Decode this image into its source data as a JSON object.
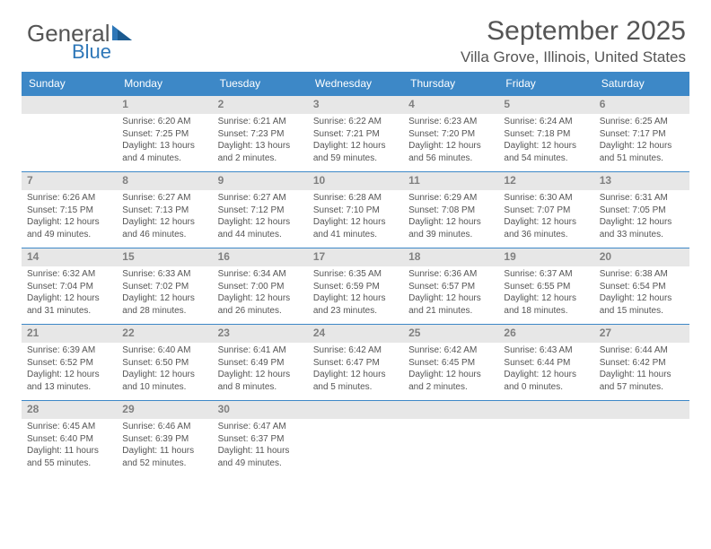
{
  "logo": {
    "text_main": "General",
    "text_blue": "Blue",
    "tri_color": "#2e77b8"
  },
  "title": "September 2025",
  "subtitle": "Villa Grove, Illinois, United States",
  "colors": {
    "header_bg": "#3d88c7",
    "header_text": "#ffffff",
    "daynum_bg": "#e7e7e7",
    "daynum_text": "#808080",
    "body_text": "#555555",
    "rule": "#3d88c7",
    "page_bg": "#ffffff"
  },
  "day_headers": [
    "Sunday",
    "Monday",
    "Tuesday",
    "Wednesday",
    "Thursday",
    "Friday",
    "Saturday"
  ],
  "weeks": [
    {
      "nums": [
        "",
        "1",
        "2",
        "3",
        "4",
        "5",
        "6"
      ],
      "details": [
        {
          "sunrise": "",
          "sunset": "",
          "daylight": ""
        },
        {
          "sunrise": "Sunrise: 6:20 AM",
          "sunset": "Sunset: 7:25 PM",
          "daylight": "Daylight: 13 hours and 4 minutes."
        },
        {
          "sunrise": "Sunrise: 6:21 AM",
          "sunset": "Sunset: 7:23 PM",
          "daylight": "Daylight: 13 hours and 2 minutes."
        },
        {
          "sunrise": "Sunrise: 6:22 AM",
          "sunset": "Sunset: 7:21 PM",
          "daylight": "Daylight: 12 hours and 59 minutes."
        },
        {
          "sunrise": "Sunrise: 6:23 AM",
          "sunset": "Sunset: 7:20 PM",
          "daylight": "Daylight: 12 hours and 56 minutes."
        },
        {
          "sunrise": "Sunrise: 6:24 AM",
          "sunset": "Sunset: 7:18 PM",
          "daylight": "Daylight: 12 hours and 54 minutes."
        },
        {
          "sunrise": "Sunrise: 6:25 AM",
          "sunset": "Sunset: 7:17 PM",
          "daylight": "Daylight: 12 hours and 51 minutes."
        }
      ]
    },
    {
      "nums": [
        "7",
        "8",
        "9",
        "10",
        "11",
        "12",
        "13"
      ],
      "details": [
        {
          "sunrise": "Sunrise: 6:26 AM",
          "sunset": "Sunset: 7:15 PM",
          "daylight": "Daylight: 12 hours and 49 minutes."
        },
        {
          "sunrise": "Sunrise: 6:27 AM",
          "sunset": "Sunset: 7:13 PM",
          "daylight": "Daylight: 12 hours and 46 minutes."
        },
        {
          "sunrise": "Sunrise: 6:27 AM",
          "sunset": "Sunset: 7:12 PM",
          "daylight": "Daylight: 12 hours and 44 minutes."
        },
        {
          "sunrise": "Sunrise: 6:28 AM",
          "sunset": "Sunset: 7:10 PM",
          "daylight": "Daylight: 12 hours and 41 minutes."
        },
        {
          "sunrise": "Sunrise: 6:29 AM",
          "sunset": "Sunset: 7:08 PM",
          "daylight": "Daylight: 12 hours and 39 minutes."
        },
        {
          "sunrise": "Sunrise: 6:30 AM",
          "sunset": "Sunset: 7:07 PM",
          "daylight": "Daylight: 12 hours and 36 minutes."
        },
        {
          "sunrise": "Sunrise: 6:31 AM",
          "sunset": "Sunset: 7:05 PM",
          "daylight": "Daylight: 12 hours and 33 minutes."
        }
      ]
    },
    {
      "nums": [
        "14",
        "15",
        "16",
        "17",
        "18",
        "19",
        "20"
      ],
      "details": [
        {
          "sunrise": "Sunrise: 6:32 AM",
          "sunset": "Sunset: 7:04 PM",
          "daylight": "Daylight: 12 hours and 31 minutes."
        },
        {
          "sunrise": "Sunrise: 6:33 AM",
          "sunset": "Sunset: 7:02 PM",
          "daylight": "Daylight: 12 hours and 28 minutes."
        },
        {
          "sunrise": "Sunrise: 6:34 AM",
          "sunset": "Sunset: 7:00 PM",
          "daylight": "Daylight: 12 hours and 26 minutes."
        },
        {
          "sunrise": "Sunrise: 6:35 AM",
          "sunset": "Sunset: 6:59 PM",
          "daylight": "Daylight: 12 hours and 23 minutes."
        },
        {
          "sunrise": "Sunrise: 6:36 AM",
          "sunset": "Sunset: 6:57 PM",
          "daylight": "Daylight: 12 hours and 21 minutes."
        },
        {
          "sunrise": "Sunrise: 6:37 AM",
          "sunset": "Sunset: 6:55 PM",
          "daylight": "Daylight: 12 hours and 18 minutes."
        },
        {
          "sunrise": "Sunrise: 6:38 AM",
          "sunset": "Sunset: 6:54 PM",
          "daylight": "Daylight: 12 hours and 15 minutes."
        }
      ]
    },
    {
      "nums": [
        "21",
        "22",
        "23",
        "24",
        "25",
        "26",
        "27"
      ],
      "details": [
        {
          "sunrise": "Sunrise: 6:39 AM",
          "sunset": "Sunset: 6:52 PM",
          "daylight": "Daylight: 12 hours and 13 minutes."
        },
        {
          "sunrise": "Sunrise: 6:40 AM",
          "sunset": "Sunset: 6:50 PM",
          "daylight": "Daylight: 12 hours and 10 minutes."
        },
        {
          "sunrise": "Sunrise: 6:41 AM",
          "sunset": "Sunset: 6:49 PM",
          "daylight": "Daylight: 12 hours and 8 minutes."
        },
        {
          "sunrise": "Sunrise: 6:42 AM",
          "sunset": "Sunset: 6:47 PM",
          "daylight": "Daylight: 12 hours and 5 minutes."
        },
        {
          "sunrise": "Sunrise: 6:42 AM",
          "sunset": "Sunset: 6:45 PM",
          "daylight": "Daylight: 12 hours and 2 minutes."
        },
        {
          "sunrise": "Sunrise: 6:43 AM",
          "sunset": "Sunset: 6:44 PM",
          "daylight": "Daylight: 12 hours and 0 minutes."
        },
        {
          "sunrise": "Sunrise: 6:44 AM",
          "sunset": "Sunset: 6:42 PM",
          "daylight": "Daylight: 11 hours and 57 minutes."
        }
      ]
    },
    {
      "nums": [
        "28",
        "29",
        "30",
        "",
        "",
        "",
        ""
      ],
      "details": [
        {
          "sunrise": "Sunrise: 6:45 AM",
          "sunset": "Sunset: 6:40 PM",
          "daylight": "Daylight: 11 hours and 55 minutes."
        },
        {
          "sunrise": "Sunrise: 6:46 AM",
          "sunset": "Sunset: 6:39 PM",
          "daylight": "Daylight: 11 hours and 52 minutes."
        },
        {
          "sunrise": "Sunrise: 6:47 AM",
          "sunset": "Sunset: 6:37 PM",
          "daylight": "Daylight: 11 hours and 49 minutes."
        },
        {
          "sunrise": "",
          "sunset": "",
          "daylight": ""
        },
        {
          "sunrise": "",
          "sunset": "",
          "daylight": ""
        },
        {
          "sunrise": "",
          "sunset": "",
          "daylight": ""
        },
        {
          "sunrise": "",
          "sunset": "",
          "daylight": ""
        }
      ]
    }
  ]
}
